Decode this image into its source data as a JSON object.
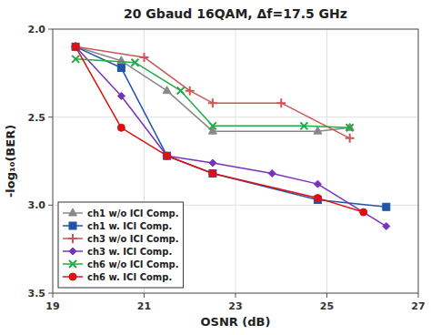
{
  "chart_data": {
    "type": "line",
    "title": "20 Gbaud 16QAM, Δf=17.5 GHz",
    "x_label": "OSNR (dB)",
    "y_label": "-log₁₀(BER)",
    "xlim": [
      19,
      27
    ],
    "ylim": [
      3.5,
      2.0
    ],
    "xticks": [
      19,
      21,
      23,
      25,
      27
    ],
    "yticks": [
      {
        "value": 2.0,
        "label": "2.0"
      },
      2.5,
      {
        "value": 3.0,
        "label": "3.0"
      },
      3.5
    ],
    "grid": true,
    "legend": "lower left",
    "series": [
      {
        "name": "ch1 w/o ICI Comp.",
        "color": "#888888",
        "marker": "triangle",
        "line_style": "solid",
        "x": [
          19.5,
          20.5,
          21.5,
          22.5,
          24.8,
          25.5
        ],
        "values": [
          2.1,
          2.18,
          2.35,
          2.58,
          2.58,
          2.56
        ]
      },
      {
        "name": "ch1 w. ICI Comp.",
        "color": "#2255aa",
        "marker": "square",
        "line_style": "solid",
        "x": [
          19.5,
          20.5,
          21.5,
          22.5,
          24.8,
          26.3
        ],
        "values": [
          2.1,
          2.22,
          2.72,
          2.82,
          2.97,
          3.01
        ]
      },
      {
        "name": "ch3 w/o ICI Comp.",
        "color": "#cc5555",
        "marker": "plus",
        "line_style": "solid",
        "x": [
          19.5,
          21.0,
          22.0,
          22.5,
          24.0,
          25.5
        ],
        "values": [
          2.1,
          2.16,
          2.35,
          2.42,
          2.42,
          2.62
        ]
      },
      {
        "name": "ch3 w. ICI Comp.",
        "color": "#7733bb",
        "marker": "diamond",
        "line_style": "solid",
        "x": [
          19.5,
          20.5,
          21.5,
          22.5,
          23.8,
          24.8,
          26.3
        ],
        "values": [
          2.1,
          2.38,
          2.72,
          2.76,
          2.82,
          2.88,
          3.12
        ]
      },
      {
        "name": "ch6 w/o ICI Comp.",
        "color": "#22aa44",
        "marker": "x",
        "line_style": "solid",
        "x": [
          19.5,
          20.8,
          21.8,
          22.5,
          24.5,
          25.5
        ],
        "values": [
          2.17,
          2.19,
          2.35,
          2.55,
          2.55,
          2.56
        ]
      },
      {
        "name": "ch6 w. ICI Comp.",
        "color": "#dd1111",
        "marker": "circle",
        "line_style": "solid",
        "x": [
          19.5,
          20.5,
          21.5,
          22.5,
          24.8,
          25.8
        ],
        "values": [
          2.1,
          2.56,
          2.72,
          2.82,
          2.96,
          3.04
        ]
      }
    ]
  }
}
